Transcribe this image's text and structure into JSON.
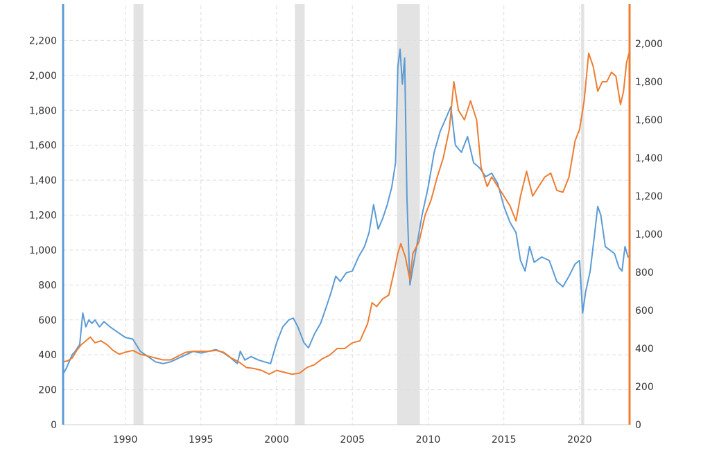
{
  "chart_data": {
    "type": "line",
    "title": "",
    "xlabel": "",
    "ylabel_left": "",
    "ylabel_right": "",
    "x_range": [
      1985.9,
      2023.3
    ],
    "x_ticks": [
      {
        "value": 1990,
        "label": "1990"
      },
      {
        "value": 1995,
        "label": "1995"
      },
      {
        "value": 2000,
        "label": "2000"
      },
      {
        "value": 2005,
        "label": "2005"
      },
      {
        "value": 2010,
        "label": "2010"
      },
      {
        "value": 2015,
        "label": "2015"
      },
      {
        "value": 2020,
        "label": "2020"
      }
    ],
    "y_left": {
      "range": [
        0,
        2400
      ],
      "ticks": [
        {
          "value": 0,
          "label": "0"
        },
        {
          "value": 200,
          "label": "200"
        },
        {
          "value": 400,
          "label": "400"
        },
        {
          "value": 600,
          "label": "600"
        },
        {
          "value": 800,
          "label": "800"
        },
        {
          "value": 1000,
          "label": "1,000"
        },
        {
          "value": 1200,
          "label": "1,200"
        },
        {
          "value": 1400,
          "label": "1,400"
        },
        {
          "value": 1600,
          "label": "1,600"
        },
        {
          "value": 1800,
          "label": "1,800"
        },
        {
          "value": 2000,
          "label": "2,000"
        },
        {
          "value": 2200,
          "label": "2,200"
        }
      ],
      "color": "#5b9bd5"
    },
    "y_right": {
      "range": [
        0,
        2200
      ],
      "ticks": [
        {
          "value": 0,
          "label": "0"
        },
        {
          "value": 200,
          "label": "200"
        },
        {
          "value": 400,
          "label": "400"
        },
        {
          "value": 600,
          "label": "600"
        },
        {
          "value": 800,
          "label": "800"
        },
        {
          "value": 1000,
          "label": "1,000"
        },
        {
          "value": 1200,
          "label": "1,200"
        },
        {
          "value": 1400,
          "label": "1,400"
        },
        {
          "value": 1600,
          "label": "1,600"
        },
        {
          "value": 1800,
          "label": "1,800"
        },
        {
          "value": 2000,
          "label": "2,000"
        }
      ],
      "color": "#ed7d31"
    },
    "grid": true,
    "recessions": [
      [
        1990.55,
        1991.2
      ],
      [
        2001.2,
        2001.85
      ],
      [
        2007.95,
        2009.45
      ],
      [
        2020.1,
        2020.3
      ]
    ],
    "recession_color": "#e3e3e3",
    "series": [
      {
        "axis": "left",
        "color": "#5b9bd5",
        "points": [
          [
            1985.9,
            290
          ],
          [
            1986.1,
            320
          ],
          [
            1986.3,
            360
          ],
          [
            1986.5,
            400
          ],
          [
            1986.7,
            420
          ],
          [
            1987.0,
            460
          ],
          [
            1987.2,
            640
          ],
          [
            1987.4,
            560
          ],
          [
            1987.6,
            600
          ],
          [
            1987.8,
            580
          ],
          [
            1988.0,
            600
          ],
          [
            1988.3,
            560
          ],
          [
            1988.6,
            590
          ],
          [
            1989.0,
            560
          ],
          [
            1989.5,
            530
          ],
          [
            1990.0,
            500
          ],
          [
            1990.5,
            490
          ],
          [
            1991.0,
            420
          ],
          [
            1991.5,
            390
          ],
          [
            1992.0,
            360
          ],
          [
            1992.5,
            350
          ],
          [
            1993.0,
            360
          ],
          [
            1993.5,
            380
          ],
          [
            1994.0,
            400
          ],
          [
            1994.5,
            420
          ],
          [
            1995.0,
            410
          ],
          [
            1995.5,
            420
          ],
          [
            1996.0,
            430
          ],
          [
            1996.5,
            410
          ],
          [
            1997.0,
            380
          ],
          [
            1997.4,
            350
          ],
          [
            1997.6,
            420
          ],
          [
            1997.9,
            370
          ],
          [
            1998.3,
            390
          ],
          [
            1998.8,
            370
          ],
          [
            1999.2,
            360
          ],
          [
            1999.6,
            350
          ],
          [
            2000.0,
            470
          ],
          [
            2000.4,
            560
          ],
          [
            2000.8,
            600
          ],
          [
            2001.1,
            610
          ],
          [
            2001.4,
            560
          ],
          [
            2001.8,
            470
          ],
          [
            2002.1,
            440
          ],
          [
            2002.5,
            520
          ],
          [
            2002.9,
            580
          ],
          [
            2003.3,
            680
          ],
          [
            2003.6,
            760
          ],
          [
            2003.9,
            850
          ],
          [
            2004.2,
            820
          ],
          [
            2004.6,
            870
          ],
          [
            2005.0,
            880
          ],
          [
            2005.4,
            960
          ],
          [
            2005.8,
            1020
          ],
          [
            2006.1,
            1100
          ],
          [
            2006.4,
            1260
          ],
          [
            2006.7,
            1120
          ],
          [
            2007.0,
            1180
          ],
          [
            2007.3,
            1260
          ],
          [
            2007.6,
            1360
          ],
          [
            2007.85,
            1500
          ],
          [
            2008.0,
            2050
          ],
          [
            2008.15,
            2150
          ],
          [
            2008.3,
            1950
          ],
          [
            2008.45,
            2100
          ],
          [
            2008.6,
            1300
          ],
          [
            2008.8,
            800
          ],
          [
            2009.0,
            900
          ],
          [
            2009.3,
            1050
          ],
          [
            2009.6,
            1200
          ],
          [
            2010.0,
            1360
          ],
          [
            2010.4,
            1560
          ],
          [
            2010.8,
            1680
          ],
          [
            2011.2,
            1760
          ],
          [
            2011.5,
            1820
          ],
          [
            2011.8,
            1600
          ],
          [
            2012.2,
            1560
          ],
          [
            2012.6,
            1650
          ],
          [
            2013.0,
            1500
          ],
          [
            2013.4,
            1470
          ],
          [
            2013.8,
            1420
          ],
          [
            2014.2,
            1440
          ],
          [
            2014.6,
            1380
          ],
          [
            2015.0,
            1250
          ],
          [
            2015.4,
            1160
          ],
          [
            2015.8,
            1100
          ],
          [
            2016.1,
            940
          ],
          [
            2016.4,
            880
          ],
          [
            2016.7,
            1020
          ],
          [
            2017.0,
            930
          ],
          [
            2017.5,
            960
          ],
          [
            2018.0,
            940
          ],
          [
            2018.5,
            820
          ],
          [
            2018.9,
            790
          ],
          [
            2019.3,
            850
          ],
          [
            2019.7,
            920
          ],
          [
            2020.0,
            940
          ],
          [
            2020.2,
            640
          ],
          [
            2020.4,
            760
          ],
          [
            2020.7,
            880
          ],
          [
            2021.0,
            1100
          ],
          [
            2021.2,
            1250
          ],
          [
            2021.4,
            1200
          ],
          [
            2021.7,
            1020
          ],
          [
            2022.0,
            1000
          ],
          [
            2022.3,
            980
          ],
          [
            2022.6,
            900
          ],
          [
            2022.8,
            880
          ],
          [
            2023.0,
            1020
          ],
          [
            2023.2,
            960
          ]
        ]
      },
      {
        "axis": "right",
        "color": "#ed7d31",
        "points": [
          [
            1985.9,
            330
          ],
          [
            1986.2,
            335
          ],
          [
            1986.5,
            350
          ],
          [
            1986.8,
            390
          ],
          [
            1987.1,
            420
          ],
          [
            1987.4,
            440
          ],
          [
            1987.7,
            460
          ],
          [
            1988.0,
            430
          ],
          [
            1988.4,
            440
          ],
          [
            1988.8,
            420
          ],
          [
            1989.2,
            390
          ],
          [
            1989.6,
            370
          ],
          [
            1990.0,
            380
          ],
          [
            1990.5,
            390
          ],
          [
            1991.0,
            370
          ],
          [
            1991.5,
            360
          ],
          [
            1992.0,
            350
          ],
          [
            1992.5,
            340
          ],
          [
            1993.0,
            340
          ],
          [
            1993.5,
            360
          ],
          [
            1994.0,
            380
          ],
          [
            1994.5,
            385
          ],
          [
            1995.0,
            385
          ],
          [
            1995.5,
            385
          ],
          [
            1996.0,
            390
          ],
          [
            1996.5,
            380
          ],
          [
            1997.0,
            350
          ],
          [
            1997.5,
            330
          ],
          [
            1998.0,
            300
          ],
          [
            1998.5,
            295
          ],
          [
            1999.0,
            285
          ],
          [
            1999.5,
            265
          ],
          [
            2000.0,
            285
          ],
          [
            2000.5,
            275
          ],
          [
            2001.0,
            265
          ],
          [
            2001.5,
            270
          ],
          [
            2002.0,
            300
          ],
          [
            2002.5,
            315
          ],
          [
            2003.0,
            345
          ],
          [
            2003.5,
            365
          ],
          [
            2004.0,
            400
          ],
          [
            2004.5,
            400
          ],
          [
            2005.0,
            430
          ],
          [
            2005.5,
            440
          ],
          [
            2006.0,
            530
          ],
          [
            2006.3,
            640
          ],
          [
            2006.6,
            620
          ],
          [
            2007.0,
            660
          ],
          [
            2007.4,
            680
          ],
          [
            2007.8,
            820
          ],
          [
            2008.0,
            900
          ],
          [
            2008.2,
            950
          ],
          [
            2008.5,
            880
          ],
          [
            2008.8,
            760
          ],
          [
            2009.0,
            900
          ],
          [
            2009.4,
            960
          ],
          [
            2009.8,
            1100
          ],
          [
            2010.2,
            1180
          ],
          [
            2010.6,
            1300
          ],
          [
            2011.0,
            1400
          ],
          [
            2011.4,
            1550
          ],
          [
            2011.7,
            1800
          ],
          [
            2012.0,
            1650
          ],
          [
            2012.4,
            1600
          ],
          [
            2012.8,
            1700
          ],
          [
            2013.2,
            1600
          ],
          [
            2013.5,
            1350
          ],
          [
            2013.9,
            1250
          ],
          [
            2014.2,
            1300
          ],
          [
            2014.6,
            1250
          ],
          [
            2015.0,
            1200
          ],
          [
            2015.4,
            1150
          ],
          [
            2015.8,
            1070
          ],
          [
            2016.1,
            1200
          ],
          [
            2016.5,
            1330
          ],
          [
            2016.9,
            1200
          ],
          [
            2017.3,
            1250
          ],
          [
            2017.7,
            1300
          ],
          [
            2018.1,
            1320
          ],
          [
            2018.5,
            1230
          ],
          [
            2018.9,
            1220
          ],
          [
            2019.3,
            1300
          ],
          [
            2019.7,
            1490
          ],
          [
            2020.0,
            1550
          ],
          [
            2020.3,
            1700
          ],
          [
            2020.6,
            1950
          ],
          [
            2020.9,
            1880
          ],
          [
            2021.2,
            1750
          ],
          [
            2021.5,
            1800
          ],
          [
            2021.8,
            1800
          ],
          [
            2022.1,
            1850
          ],
          [
            2022.4,
            1830
          ],
          [
            2022.7,
            1680
          ],
          [
            2022.9,
            1750
          ],
          [
            2023.1,
            1900
          ],
          [
            2023.3,
            1960
          ]
        ]
      }
    ]
  }
}
